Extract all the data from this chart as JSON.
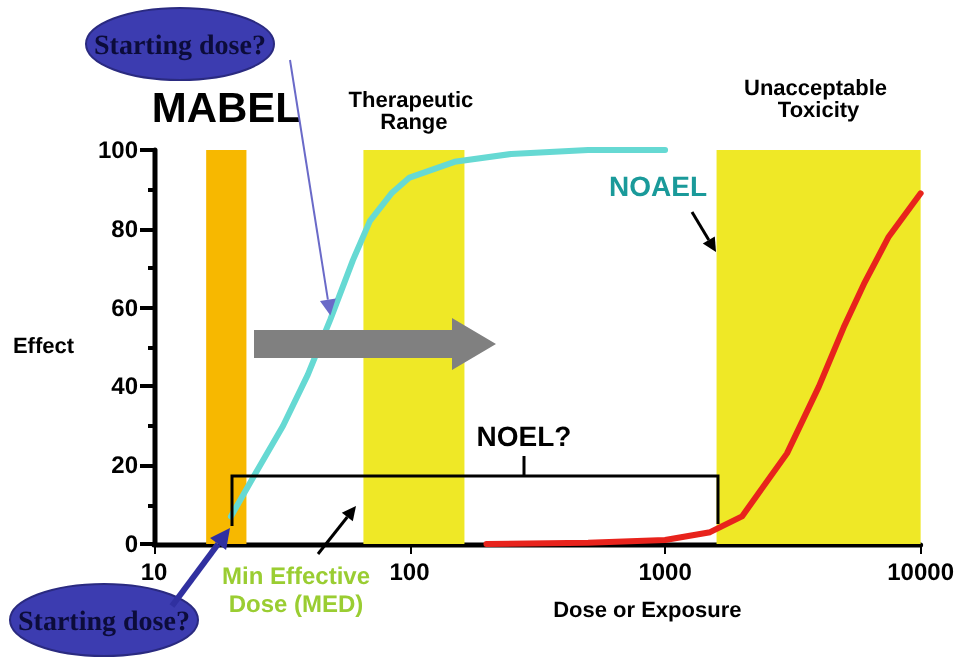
{
  "chart_data": {
    "type": "line",
    "xlabel": "Dose or Exposure",
    "ylabel": "Effect",
    "log": "x",
    "xlim": [
      10,
      10000
    ],
    "xticks": [
      10,
      100,
      1000,
      10000
    ],
    "ylim": [
      0,
      100
    ],
    "yticks": [
      0,
      20,
      40,
      60,
      80,
      100
    ],
    "grid": false,
    "marker": "none",
    "line_style": "solid",
    "series": [
      {
        "color": "#66d9d3",
        "x": [
          20,
          25,
          32,
          40,
          49,
          60,
          70,
          85,
          100,
          150,
          250,
          500,
          1000
        ],
        "values": [
          7,
          18,
          30,
          43,
          57,
          72,
          82,
          89,
          93,
          97,
          99,
          100,
          100
        ]
      },
      {
        "color": "#e8231c",
        "x": [
          200,
          500,
          1000,
          1500,
          2000,
          3000,
          4000,
          5000,
          6000,
          7500,
          10000
        ],
        "values": [
          0,
          0.3,
          1,
          3,
          7,
          23,
          40,
          55,
          66,
          78,
          89
        ]
      }
    ],
    "bands": [
      {
        "axis": "x",
        "from": 16,
        "to": 23,
        "label": "MABEL",
        "color": "#f7b800"
      },
      {
        "axis": "x",
        "from": 66,
        "to": 164,
        "label": "Therapeutic Range",
        "color": "#efe826"
      },
      {
        "axis": "x",
        "from": 1590,
        "to": 10000,
        "label": "Unacceptable Toxicity",
        "color": "#efe826"
      }
    ],
    "annotations": [
      {
        "text": "Starting dose?",
        "x": 49,
        "y": 58
      },
      "Starting dose?",
      "NOAEL",
      "NOEL?",
      "Min Effective Dose (MED)"
    ]
  }
}
